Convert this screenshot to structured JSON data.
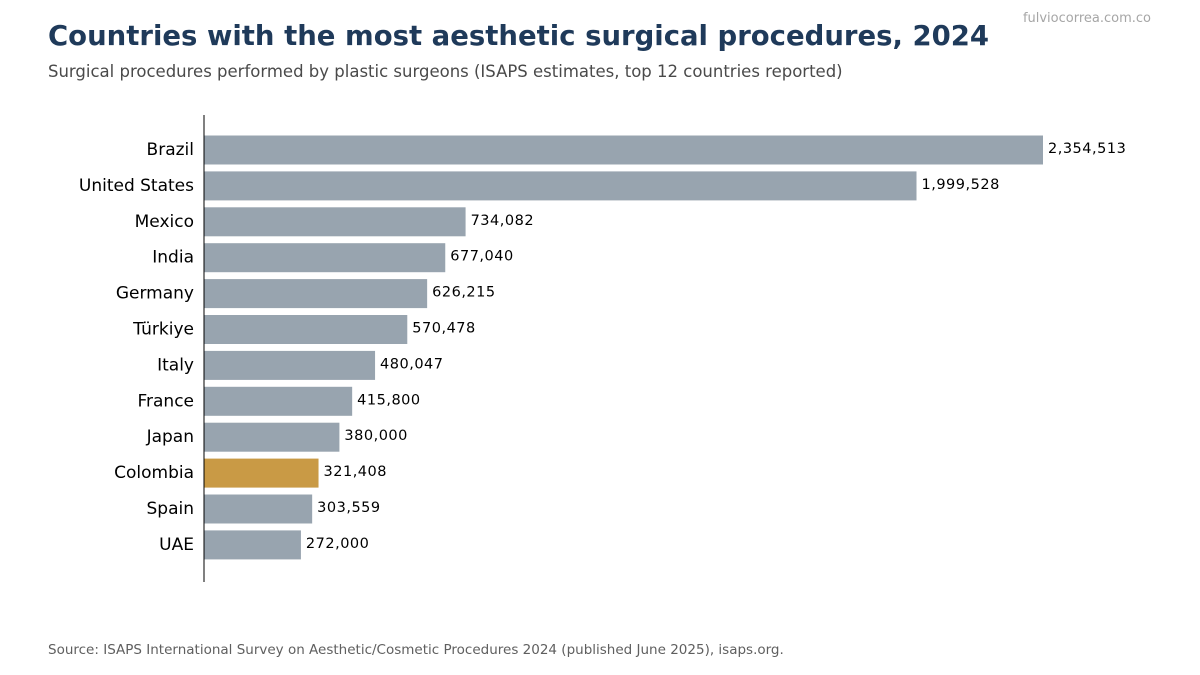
{
  "watermark": "fulviocorrea.com.co",
  "title": "Countries with the most aesthetic surgical procedures, 2024",
  "subtitle": "Surgical procedures performed by plastic surgeons (ISAPS estimates, top 12 countries reported)",
  "source": "Source: ISAPS International Survey on Aesthetic/Cosmetic Procedures 2024 (published June 2025), isaps.org.",
  "colors": {
    "bar": "#98a4af",
    "highlight": "#c99a45",
    "axis": "#000000",
    "label": "#000000"
  },
  "chart_data": {
    "type": "bar",
    "orientation": "horizontal",
    "categories": [
      "Brazil",
      "United States",
      "Mexico",
      "India",
      "Germany",
      "Türkiye",
      "Italy",
      "France",
      "Japan",
      "Colombia",
      "Spain",
      "UAE"
    ],
    "values": [
      2354513,
      1999528,
      734082,
      677040,
      626215,
      570478,
      480047,
      415800,
      380000,
      321408,
      303559,
      272000
    ],
    "value_labels": [
      "2,354,513",
      "1,999,528",
      "734,082",
      "677,040",
      "626,215",
      "570,478",
      "480,047",
      "415,800",
      "380,000",
      "321,408",
      "303,559",
      "272,000"
    ],
    "highlighted_category": "Colombia",
    "xlabel": "",
    "ylabel": "",
    "xlim": [
      0,
      2354513
    ],
    "grid": false,
    "legend": "none"
  }
}
